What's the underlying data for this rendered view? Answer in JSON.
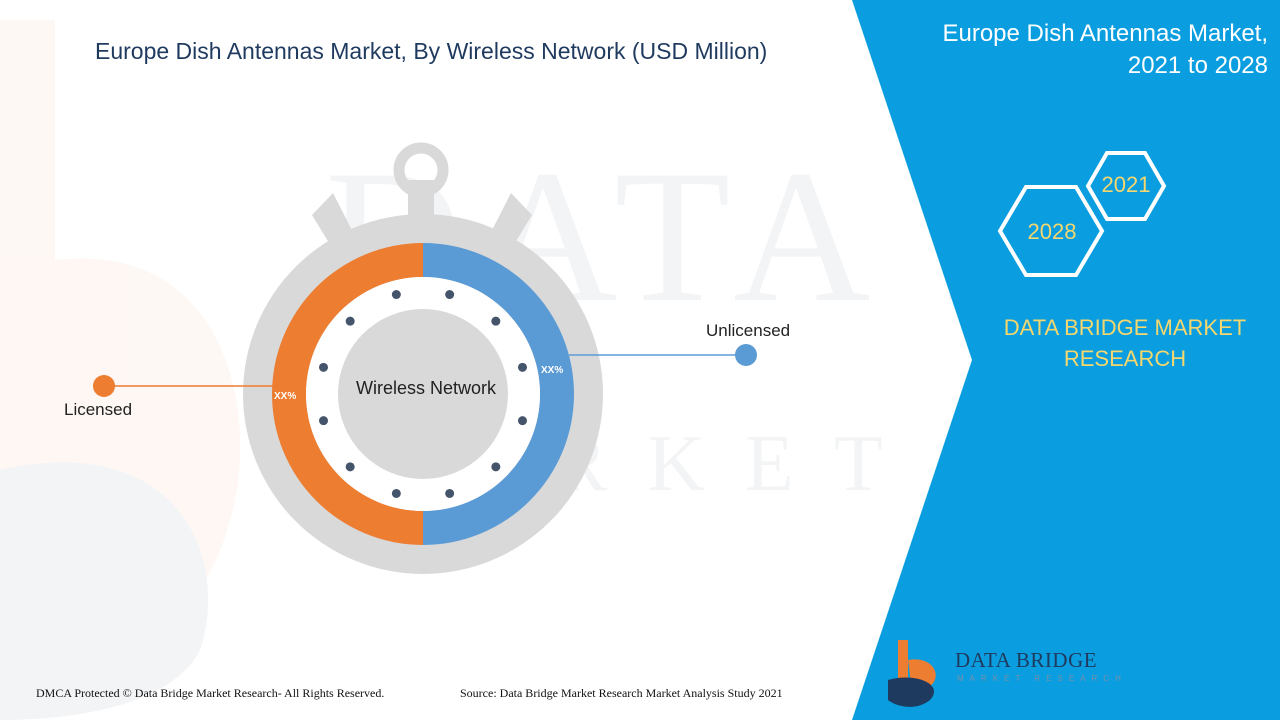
{
  "title": "Europe Dish Antennas Market, By Wireless Network (USD Million)",
  "side_panel": {
    "title_line1": "Europe Dish Antennas Market,",
    "title_line2": "2021 to 2028",
    "hex_years": [
      "2021",
      "2028"
    ],
    "brand_line1": "DATA BRIDGE MARKET",
    "brand_line2": "RESEARCH"
  },
  "chart_data": {
    "type": "pie",
    "center_label": "Wireless Network",
    "segments": [
      {
        "name": "Licensed",
        "value_label": "XX%",
        "share": 0.5,
        "color": "#ed7d31"
      },
      {
        "name": "Unlicensed",
        "value_label": "XX%",
        "share": 0.5,
        "color": "#5b9bd5"
      }
    ]
  },
  "footer": {
    "left": "DMCA Protected © Data Bridge Market Research- All Rights Reserved.",
    "right": "Source: Data Bridge Market Research Market Analysis Study 2021"
  },
  "logo": {
    "word": "DATA BRIDGE",
    "sub": "MARKET RESEARCH"
  },
  "colors": {
    "panel_blue": "#0a9ee0",
    "title_navy": "#1f3a5f",
    "gray_ring": "#d9d9d9",
    "brand_yellow": "#f5d76e"
  }
}
